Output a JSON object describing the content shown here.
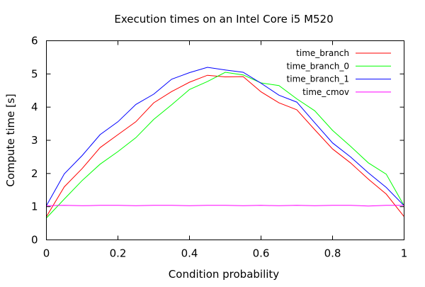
{
  "chart_data": {
    "type": "line",
    "title": "Execution times on an Intel Core i5 M520",
    "xlabel": "Condition probability",
    "ylabel": "Compute time [s]",
    "xlim": [
      0,
      1
    ],
    "ylim": [
      0,
      6
    ],
    "x_ticks": [
      "0",
      "0.2",
      "0.4",
      "0.6",
      "0.8",
      "1"
    ],
    "y_ticks": [
      "0",
      "1",
      "2",
      "3",
      "4",
      "5",
      "6"
    ],
    "grid": false,
    "legend_position": "top-right",
    "x": [
      0,
      0.05,
      0.1,
      0.15,
      0.2,
      0.25,
      0.3,
      0.35,
      0.4,
      0.45,
      0.5,
      0.55,
      0.6,
      0.65,
      0.7,
      0.75,
      0.8,
      0.85,
      0.9,
      0.95,
      1
    ],
    "series": [
      {
        "name": "time_branch",
        "color": "#ff0000",
        "values": [
          0.7,
          1.6,
          2.15,
          2.78,
          3.17,
          3.56,
          4.13,
          4.47,
          4.75,
          4.96,
          4.91,
          4.92,
          4.46,
          4.13,
          3.92,
          3.32,
          2.74,
          2.32,
          1.83,
          1.38,
          0.7
        ]
      },
      {
        "name": "time_branch_0",
        "color": "#00ff00",
        "values": [
          0.66,
          1.23,
          1.79,
          2.28,
          2.66,
          3.08,
          3.63,
          4.07,
          4.53,
          4.77,
          5.05,
          4.97,
          4.73,
          4.65,
          4.25,
          3.89,
          3.3,
          2.82,
          2.32,
          1.98,
          1.03
        ]
      },
      {
        "name": "time_branch_1",
        "color": "#0000ff",
        "values": [
          1.03,
          1.99,
          2.54,
          3.17,
          3.56,
          4.08,
          4.39,
          4.84,
          5.04,
          5.2,
          5.12,
          5.05,
          4.72,
          4.36,
          4.15,
          3.53,
          2.92,
          2.5,
          2.02,
          1.58,
          1.03
        ]
      },
      {
        "name": "time_cmov",
        "color": "#ff00ff",
        "values": [
          1.03,
          1.04,
          1.03,
          1.04,
          1.04,
          1.03,
          1.04,
          1.04,
          1.03,
          1.04,
          1.04,
          1.03,
          1.04,
          1.03,
          1.04,
          1.03,
          1.04,
          1.04,
          1.02,
          1.04,
          1.04
        ]
      }
    ]
  }
}
